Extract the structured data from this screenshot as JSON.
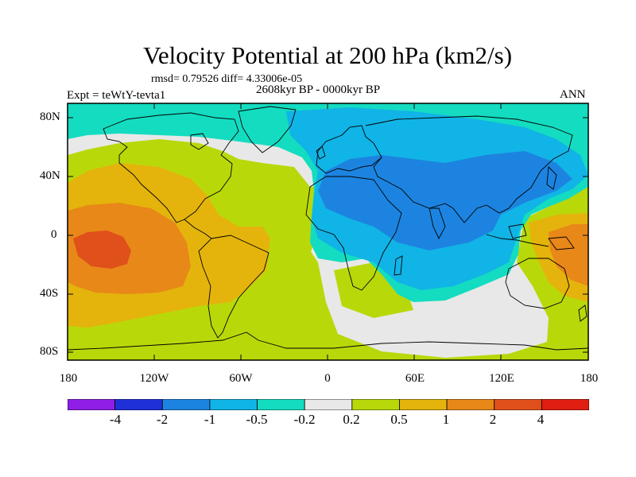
{
  "title": "Velocity Potential at 200 hPa (km2/s)",
  "stats": "rmsd= 0.79526 diff= 4.33006e-05",
  "period": "2608kyr BP - 0000kyr BP",
  "experiment": "Expt = teWtY-tevta1",
  "season": "ANN",
  "y_ticks": [
    "80N",
    "40N",
    "0",
    "40S",
    "80S"
  ],
  "x_ticks": [
    "180",
    "120W",
    "60W",
    "0",
    "60E",
    "120E",
    "180"
  ],
  "colorbar": {
    "labels": [
      "-4",
      "-2",
      "-1",
      "-0.5",
      "-0.2",
      "0.2",
      "0.5",
      "1",
      "2",
      "4"
    ],
    "colors": [
      "#8f1fe6",
      "#2030d8",
      "#1c84e0",
      "#11b4e6",
      "#14dcc0",
      "#e8e8e8",
      "#b9d80a",
      "#e4b40c",
      "#e88818",
      "#e0501a",
      "#e01e12"
    ]
  },
  "palette": {
    "neg5": "#2030d8",
    "neg4": "#1c84e0",
    "neg3": "#11b4e6",
    "neg2": "#14dcc0",
    "zero": "#e8e8e8",
    "pos2": "#b9d80a",
    "pos3": "#e4b40c",
    "pos4": "#e88818",
    "pos5": "#e0501a"
  }
}
